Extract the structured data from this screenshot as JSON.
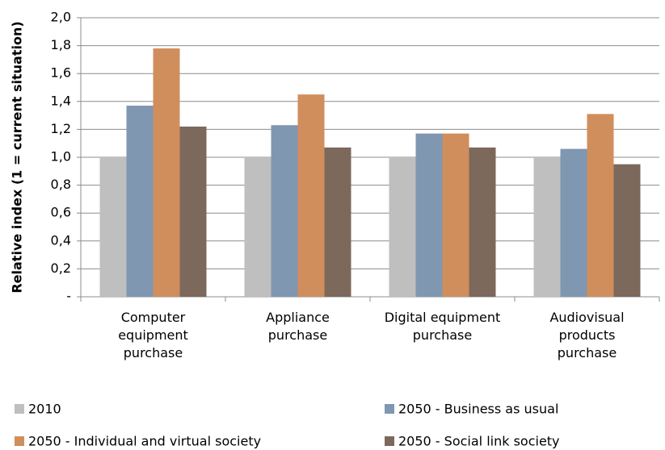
{
  "chart_data": {
    "type": "bar",
    "y_label": "Relative index (1 = current situation)",
    "categories": [
      "Computer\nequipment\npurchase",
      "Appliance\npurchase",
      "Digital equipment\npurchase",
      "Audiovisual\nproducts\npurchase"
    ],
    "series": [
      {
        "name": "2010",
        "color": "#bfbfbf",
        "values": [
          1.0,
          1.0,
          1.0,
          1.0
        ]
      },
      {
        "name": "2050 - Business as usual",
        "color": "#7f97b1",
        "values": [
          1.37,
          1.23,
          1.17,
          1.06
        ]
      },
      {
        "name": "2050 - Individual and virtual society",
        "color": "#d08e5d",
        "values": [
          1.78,
          1.45,
          1.17,
          1.31
        ]
      },
      {
        "name": "2050 - Social link society",
        "color": "#7c695c",
        "values": [
          1.22,
          1.07,
          1.07,
          0.95
        ]
      }
    ],
    "ylim": [
      0,
      2
    ],
    "yticks": [
      {
        "value": 0,
        "label": "-"
      },
      {
        "value": 0.2,
        "label": "0,2"
      },
      {
        "value": 0.4,
        "label": "0,4"
      },
      {
        "value": 0.6,
        "label": "0,6"
      },
      {
        "value": 0.8,
        "label": "0,8"
      },
      {
        "value": 1.0,
        "label": "1,0"
      },
      {
        "value": 1.2,
        "label": "1,2"
      },
      {
        "value": 1.4,
        "label": "1,4"
      },
      {
        "value": 1.6,
        "label": "1,6"
      },
      {
        "value": 1.8,
        "label": "1,8"
      },
      {
        "value": 2.0,
        "label": "2,0"
      }
    ],
    "grid": true
  }
}
